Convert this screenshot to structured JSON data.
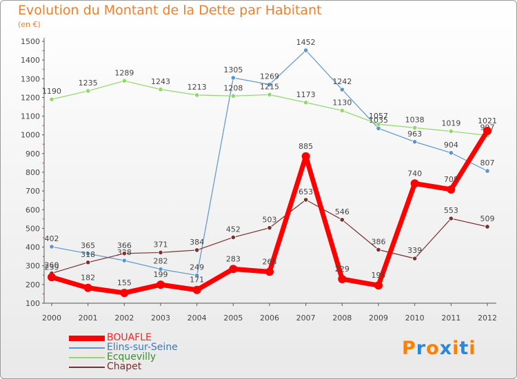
{
  "chart_data": {
    "type": "line",
    "title": "Evolution du Montant de la Dette par Habitant",
    "subtitle": "(en €)",
    "x": [
      "2000",
      "2001",
      "2002",
      "2003",
      "2004",
      "2005",
      "2006",
      "2007",
      "2008",
      "2009",
      "2010",
      "2011",
      "2012"
    ],
    "ylim": [
      100,
      1500
    ],
    "yticks": [
      100,
      200,
      300,
      400,
      500,
      600,
      700,
      800,
      900,
      1000,
      1100,
      1200,
      1300,
      1400,
      1500
    ],
    "grid": false,
    "legend_position": "bottom-left",
    "series": [
      {
        "name": "Elins-sur-Seine",
        "color": "#5b95cc",
        "values": [
          402,
          365,
          328,
          282,
          249,
          1305,
          1269,
          1452,
          1242,
          1035,
          963,
          904,
          807
        ]
      },
      {
        "name": "Ecquevilly",
        "color": "#8fd86a",
        "values": [
          1190,
          1235,
          1289,
          1243,
          1213,
          1208,
          1215,
          1173,
          1130,
          1057,
          1038,
          1019,
          997
        ]
      },
      {
        "name": "Chapet",
        "color": "#7a2e2e",
        "values": [
          260,
          318,
          366,
          371,
          384,
          452,
          503,
          653,
          546,
          386,
          339,
          553,
          509
        ]
      },
      {
        "name": "BOUAFLE",
        "color": "#ff0000",
        "values": [
          239,
          182,
          155,
          199,
          171,
          283,
          268,
          885,
          229,
          195,
          740,
          708,
          1021
        ]
      }
    ]
  },
  "legend_order": [
    3,
    0,
    1,
    2
  ],
  "logo": {
    "letters": [
      "P",
      "r",
      "o",
      "x",
      "i",
      "t",
      "i"
    ],
    "colors": [
      "#ff7f00",
      "#2b88d8",
      "#ff7f00",
      "#2b88d8",
      "#ff7f00",
      "#2b88d8",
      "#ff7f00"
    ]
  }
}
